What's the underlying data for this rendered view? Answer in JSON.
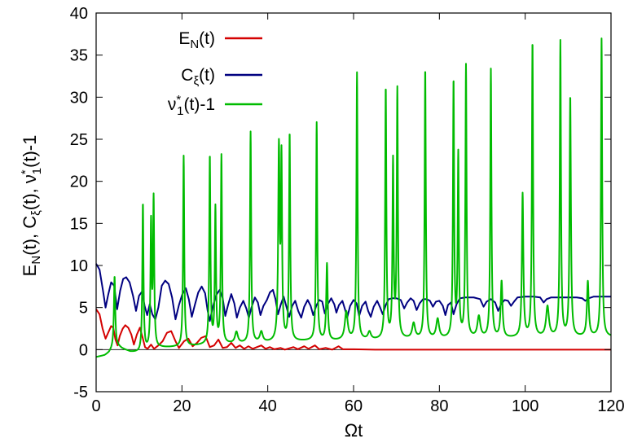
{
  "chart_data": {
    "type": "line",
    "xlabel": "Ωt",
    "ylabel": "E_N(t), C_ξ(t), ν*_1(t)-1",
    "xlim": [
      0,
      120
    ],
    "ylim": [
      -5,
      40
    ],
    "x_ticks": [
      "0",
      "20",
      "40",
      "60",
      "80",
      "100",
      "120"
    ],
    "y_ticks": [
      "-5",
      "0",
      "5",
      "10",
      "15",
      "20",
      "25",
      "30",
      "35",
      "40"
    ],
    "zero_line": true,
    "legend_position": "top-left",
    "series": [
      {
        "name": "E_N(t)",
        "color": "#d40000",
        "points": [
          [
            0,
            4.8
          ],
          [
            0.8,
            4.2
          ],
          [
            1.5,
            2.5
          ],
          [
            2.2,
            1.3
          ],
          [
            2.8,
            2.0
          ],
          [
            3.5,
            2.8
          ],
          [
            4.0,
            2.6
          ],
          [
            4.5,
            1.2
          ],
          [
            5.0,
            0.5
          ],
          [
            5.5,
            1.6
          ],
          [
            6.2,
            2.5
          ],
          [
            6.8,
            2.9
          ],
          [
            7.5,
            2.6
          ],
          [
            8.2,
            1.8
          ],
          [
            8.8,
            0.6
          ],
          [
            9.5,
            1.8
          ],
          [
            10.2,
            2.6
          ],
          [
            10.8,
            1.5
          ],
          [
            11.4,
            0.3
          ],
          [
            12.0,
            0.1
          ],
          [
            12.8,
            0.6
          ],
          [
            13.5,
            0.1
          ],
          [
            14.5,
            0.5
          ],
          [
            15.5,
            1.0
          ],
          [
            16.5,
            2.0
          ],
          [
            17.5,
            2.2
          ],
          [
            18.5,
            1.0
          ],
          [
            19.3,
            0.2
          ],
          [
            20.5,
            1.0
          ],
          [
            21.5,
            1.3
          ],
          [
            22.5,
            0.4
          ],
          [
            23.5,
            0.8
          ],
          [
            24.5,
            1.4
          ],
          [
            25.5,
            1.6
          ],
          [
            26.5,
            0.3
          ],
          [
            27.5,
            0.5
          ],
          [
            28.5,
            1.2
          ],
          [
            29.5,
            0.2
          ],
          [
            30.5,
            0.3
          ],
          [
            31.5,
            0.8
          ],
          [
            32.5,
            0.2
          ],
          [
            33.5,
            0.5
          ],
          [
            34.5,
            0.1
          ],
          [
            35.5,
            0.4
          ],
          [
            36.5,
            0.1
          ],
          [
            37.5,
            0.3
          ],
          [
            38.5,
            0.5
          ],
          [
            39.5,
            0.1
          ],
          [
            40.5,
            0.3
          ],
          [
            41.5,
            0.05
          ],
          [
            43,
            0.2
          ],
          [
            44,
            0.0
          ],
          [
            46,
            0.3
          ],
          [
            47,
            0.05
          ],
          [
            48.5,
            0.4
          ],
          [
            49.5,
            0.1
          ],
          [
            51,
            0.5
          ],
          [
            52,
            0.05
          ],
          [
            53.5,
            0.2
          ],
          [
            55,
            0.0
          ],
          [
            56.5,
            0.4
          ],
          [
            57.5,
            0.05
          ],
          [
            60,
            0.05
          ],
          [
            65,
            0.0
          ],
          [
            70,
            0.0
          ],
          [
            80,
            0.0
          ],
          [
            90,
            0.0
          ],
          [
            100,
            0.0
          ],
          [
            110,
            0.0
          ],
          [
            120,
            0.0
          ]
        ]
      },
      {
        "name": "C_ξ(t)",
        "color": "#000080",
        "points": [
          [
            0,
            10.2
          ],
          [
            0.8,
            9.5
          ],
          [
            1.6,
            7.0
          ],
          [
            2.2,
            5.0
          ],
          [
            2.8,
            6.5
          ],
          [
            3.5,
            8.0
          ],
          [
            4.2,
            7.6
          ],
          [
            4.9,
            4.8
          ],
          [
            5.6,
            7.0
          ],
          [
            6.3,
            8.4
          ],
          [
            7.0,
            8.6
          ],
          [
            7.8,
            8.0
          ],
          [
            8.6,
            6.4
          ],
          [
            9.3,
            4.6
          ],
          [
            10.0,
            6.4
          ],
          [
            10.7,
            6.9
          ],
          [
            11.3,
            5.2
          ],
          [
            11.9,
            4.1
          ],
          [
            12.5,
            5.4
          ],
          [
            13.1,
            4.2
          ],
          [
            13.8,
            3.6
          ],
          [
            14.5,
            5.0
          ],
          [
            15.3,
            7.6
          ],
          [
            16.1,
            8.2
          ],
          [
            16.9,
            7.8
          ],
          [
            17.7,
            6.2
          ],
          [
            18.5,
            3.6
          ],
          [
            19.3,
            5.3
          ],
          [
            20.1,
            6.6
          ],
          [
            20.9,
            7.3
          ],
          [
            21.6,
            6.0
          ],
          [
            22.3,
            3.9
          ],
          [
            23.0,
            5.3
          ],
          [
            23.8,
            6.8
          ],
          [
            24.6,
            7.5
          ],
          [
            25.4,
            6.7
          ],
          [
            26.0,
            4.6
          ],
          [
            26.5,
            3.4
          ],
          [
            27.2,
            5.1
          ],
          [
            28.0,
            6.5
          ],
          [
            28.8,
            7.1
          ],
          [
            29.5,
            6.1
          ],
          [
            30.1,
            4.0
          ],
          [
            30.8,
            5.4
          ],
          [
            31.5,
            6.6
          ],
          [
            32.2,
            5.5
          ],
          [
            32.8,
            3.8
          ],
          [
            33.5,
            5.0
          ],
          [
            34.3,
            5.8
          ],
          [
            35.0,
            4.9
          ],
          [
            35.6,
            3.8
          ],
          [
            36.2,
            5.0
          ],
          [
            37.0,
            6.2
          ],
          [
            37.7,
            5.6
          ],
          [
            38.3,
            4.1
          ],
          [
            39.0,
            5.2
          ],
          [
            39.8,
            5.9
          ],
          [
            40.5,
            6.8
          ],
          [
            41.2,
            7.1
          ],
          [
            41.8,
            6.0
          ],
          [
            42.4,
            4.2
          ],
          [
            43.0,
            5.3
          ],
          [
            43.7,
            6.3
          ],
          [
            44.4,
            5.0
          ],
          [
            45.0,
            3.9
          ],
          [
            45.7,
            5.2
          ],
          [
            46.4,
            5.8
          ],
          [
            47.1,
            4.6
          ],
          [
            47.8,
            3.8
          ],
          [
            48.5,
            5.1
          ],
          [
            49.3,
            5.9
          ],
          [
            50.0,
            5.2
          ],
          [
            50.6,
            4.1
          ],
          [
            51.3,
            5.2
          ],
          [
            52.0,
            5.9
          ],
          [
            52.7,
            5.7
          ],
          [
            53.3,
            4.3
          ],
          [
            54.0,
            5.4
          ],
          [
            54.8,
            6.1
          ],
          [
            55.5,
            5.4
          ],
          [
            56.0,
            4.4
          ],
          [
            56.6,
            5.3
          ],
          [
            57.4,
            5.8
          ],
          [
            58.0,
            4.8
          ],
          [
            58.5,
            3.8
          ],
          [
            59.2,
            5.2
          ],
          [
            60.0,
            5.9
          ],
          [
            60.7,
            5.5
          ],
          [
            61.3,
            4.0
          ],
          [
            62.0,
            5.2
          ],
          [
            62.8,
            5.7
          ],
          [
            63.4,
            4.6
          ],
          [
            64.0,
            3.9
          ],
          [
            64.7,
            5.1
          ],
          [
            65.5,
            5.8
          ],
          [
            66.2,
            5.0
          ],
          [
            66.8,
            4.2
          ],
          [
            67.5,
            5.3
          ],
          [
            68.2,
            6.0
          ],
          [
            69.0,
            6.1
          ],
          [
            70.0,
            6.1
          ],
          [
            71.0,
            5.9
          ],
          [
            71.8,
            4.9
          ],
          [
            72.5,
            5.6
          ],
          [
            73.3,
            6.1
          ],
          [
            74.0,
            5.8
          ],
          [
            74.7,
            4.7
          ],
          [
            75.4,
            5.5
          ],
          [
            76.2,
            6.0
          ],
          [
            77.0,
            6.0
          ],
          [
            77.8,
            5.8
          ],
          [
            78.5,
            5.1
          ],
          [
            79.2,
            5.7
          ],
          [
            80.0,
            5.8
          ],
          [
            80.8,
            5.2
          ],
          [
            81.4,
            4.1
          ],
          [
            82.0,
            5.3
          ],
          [
            82.7,
            5.6
          ],
          [
            83.3,
            4.2
          ],
          [
            84.0,
            5.4
          ],
          [
            84.8,
            6.1
          ],
          [
            86,
            6.2
          ],
          [
            88,
            6.2
          ],
          [
            89.5,
            6.0
          ],
          [
            90.3,
            5.1
          ],
          [
            91.0,
            5.7
          ],
          [
            92.0,
            6.0
          ],
          [
            93.0,
            5.6
          ],
          [
            93.7,
            4.6
          ],
          [
            94.4,
            5.4
          ],
          [
            95.2,
            5.9
          ],
          [
            96.0,
            5.8
          ],
          [
            96.7,
            5.2
          ],
          [
            97.4,
            5.7
          ],
          [
            98.2,
            6.2
          ],
          [
            100,
            6.3
          ],
          [
            102,
            6.3
          ],
          [
            103.5,
            6.2
          ],
          [
            104.3,
            5.6
          ],
          [
            105.0,
            6.0
          ],
          [
            106,
            6.2
          ],
          [
            108,
            6.2
          ],
          [
            110,
            6.2
          ],
          [
            112,
            6.2
          ],
          [
            113.3,
            6.1
          ],
          [
            114,
            5.8
          ],
          [
            114.8,
            6.1
          ],
          [
            116,
            6.3
          ],
          [
            118,
            6.3
          ],
          [
            120,
            6.3
          ]
        ]
      },
      {
        "name": "ν*_1(t)-1",
        "color": "#00bb00",
        "baseline_points": [
          [
            0,
            -0.9
          ],
          [
            2,
            -0.7
          ],
          [
            3,
            -0.4
          ],
          [
            4,
            0.2
          ],
          [
            5,
            0.4
          ],
          [
            6,
            0.1
          ],
          [
            8,
            -0.3
          ],
          [
            10,
            -0.4
          ],
          [
            15,
            0.2
          ],
          [
            20,
            0.3
          ],
          [
            25,
            0.5
          ],
          [
            30,
            0.6
          ],
          [
            35,
            0.7
          ],
          [
            40,
            0.8
          ],
          [
            45,
            0.9
          ],
          [
            50,
            1.0
          ],
          [
            55,
            1.0
          ],
          [
            60,
            1.1
          ],
          [
            65,
            1.1
          ],
          [
            70,
            1.2
          ],
          [
            75,
            1.2
          ],
          [
            80,
            1.2
          ],
          [
            85,
            1.3
          ],
          [
            90,
            1.3
          ],
          [
            95,
            1.3
          ],
          [
            100,
            1.4
          ],
          [
            105,
            1.4
          ],
          [
            110,
            1.4
          ],
          [
            115,
            1.5
          ],
          [
            120,
            1.5
          ]
        ],
        "peaks": [
          [
            4.3,
            8.7,
            0.18
          ],
          [
            10.9,
            17.3,
            0.16
          ],
          [
            12.8,
            14.6,
            0.16
          ],
          [
            13.4,
            17.5,
            0.16
          ],
          [
            20.4,
            23.0,
            0.16
          ],
          [
            26.5,
            22.9,
            0.16
          ],
          [
            27.8,
            16.6,
            0.16
          ],
          [
            29.2,
            22.9,
            0.16
          ],
          [
            32.7,
            2.0,
            0.4
          ],
          [
            36.0,
            25.8,
            0.16
          ],
          [
            38.5,
            2.0,
            0.4
          ],
          [
            42.6,
            23.5,
            0.2
          ],
          [
            43.2,
            21.8,
            0.16
          ],
          [
            45.1,
            25.6,
            0.16
          ],
          [
            51.4,
            26.9,
            0.16
          ],
          [
            53.8,
            10.1,
            0.2
          ],
          [
            58.3,
            4.4,
            0.4
          ],
          [
            60.8,
            32.8,
            0.16
          ],
          [
            63.7,
            2.0,
            0.4
          ],
          [
            67.5,
            31.0,
            0.16
          ],
          [
            69.2,
            22.0,
            0.16
          ],
          [
            70.2,
            30.6,
            0.16
          ],
          [
            74.0,
            3.0,
            0.4
          ],
          [
            76.7,
            33.3,
            0.16
          ],
          [
            79.6,
            3.5,
            0.4
          ],
          [
            83.3,
            31.7,
            0.16
          ],
          [
            84.4,
            22.8,
            0.16
          ],
          [
            86.2,
            33.6,
            0.16
          ],
          [
            89.2,
            3.8,
            0.4
          ],
          [
            92.0,
            33.2,
            0.16
          ],
          [
            94.5,
            8.0,
            0.25
          ],
          [
            99.4,
            18.4,
            0.2
          ],
          [
            101.7,
            36.5,
            0.16
          ],
          [
            105.2,
            5.0,
            0.4
          ],
          [
            108.2,
            36.5,
            0.16
          ],
          [
            110.5,
            30.0,
            0.18
          ],
          [
            114.6,
            8.0,
            0.25
          ],
          [
            117.8,
            36.9,
            0.16
          ]
        ]
      }
    ]
  }
}
